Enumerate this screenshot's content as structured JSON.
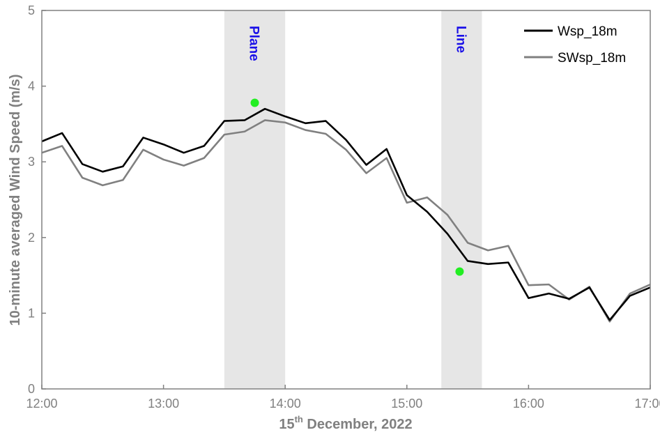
{
  "chart_data": {
    "type": "line",
    "title": "",
    "xlabel": "15th December, 2022",
    "xlabel_parts": {
      "day": "15",
      "suffix": "th",
      "rest": " December, 2022"
    },
    "ylabel": "10-minute averaged Wind Speed (m/s)",
    "xlim": [
      12.0,
      17.0
    ],
    "ylim": [
      0,
      5
    ],
    "x_ticks": [
      12,
      13,
      14,
      15,
      16,
      17
    ],
    "x_tick_labels": [
      "12:00",
      "13:00",
      "14:00",
      "15:00",
      "16:00",
      "17:00"
    ],
    "y_ticks": [
      0,
      1,
      2,
      3,
      4,
      5
    ],
    "y_tick_labels": [
      "0",
      "1",
      "2",
      "3",
      "4",
      "5"
    ],
    "grid": false,
    "legend_position": "top-right",
    "x": [
      12.0,
      12.1667,
      12.3333,
      12.5,
      12.6667,
      12.8333,
      13.0,
      13.1667,
      13.3333,
      13.5,
      13.6667,
      13.8333,
      14.0,
      14.1667,
      14.3333,
      14.5,
      14.6667,
      14.8333,
      15.0,
      15.1667,
      15.3333,
      15.5,
      15.6667,
      15.8333,
      16.0,
      16.1667,
      16.3333,
      16.5,
      16.6667,
      16.8333,
      17.0
    ],
    "series": [
      {
        "name": "Wsp_18m",
        "color": "#000000",
        "values": [
          3.27,
          3.38,
          2.97,
          2.87,
          2.94,
          3.32,
          3.23,
          3.12,
          3.21,
          3.54,
          3.55,
          3.7,
          3.6,
          3.51,
          3.54,
          3.29,
          2.96,
          3.17,
          2.56,
          2.34,
          2.05,
          1.69,
          1.65,
          1.67,
          1.2,
          1.26,
          1.19,
          1.34,
          0.91,
          1.23,
          1.34
        ]
      },
      {
        "name": "SWsp_18m",
        "color": "#808080",
        "values": [
          3.12,
          3.21,
          2.79,
          2.69,
          2.76,
          3.16,
          3.03,
          2.95,
          3.05,
          3.36,
          3.4,
          3.55,
          3.52,
          3.42,
          3.37,
          3.16,
          2.85,
          3.05,
          2.46,
          2.53,
          2.3,
          1.93,
          1.83,
          1.89,
          1.37,
          1.38,
          1.18,
          1.35,
          0.89,
          1.26,
          1.38
        ]
      }
    ],
    "shaded_bands": [
      {
        "label": "Plane",
        "x_start": 13.5,
        "x_end": 14.0,
        "color": "#e6e6e6",
        "label_color": "#1a10e8"
      },
      {
        "label": "Line",
        "x_start": 15.2833,
        "x_end": 15.6167,
        "color": "#e6e6e6",
        "label_color": "#1a10e8"
      }
    ],
    "points": [
      {
        "x": 13.75,
        "y": 3.78,
        "color": "#22ee22"
      },
      {
        "x": 15.4333,
        "y": 1.55,
        "color": "#22ee22"
      }
    ]
  }
}
